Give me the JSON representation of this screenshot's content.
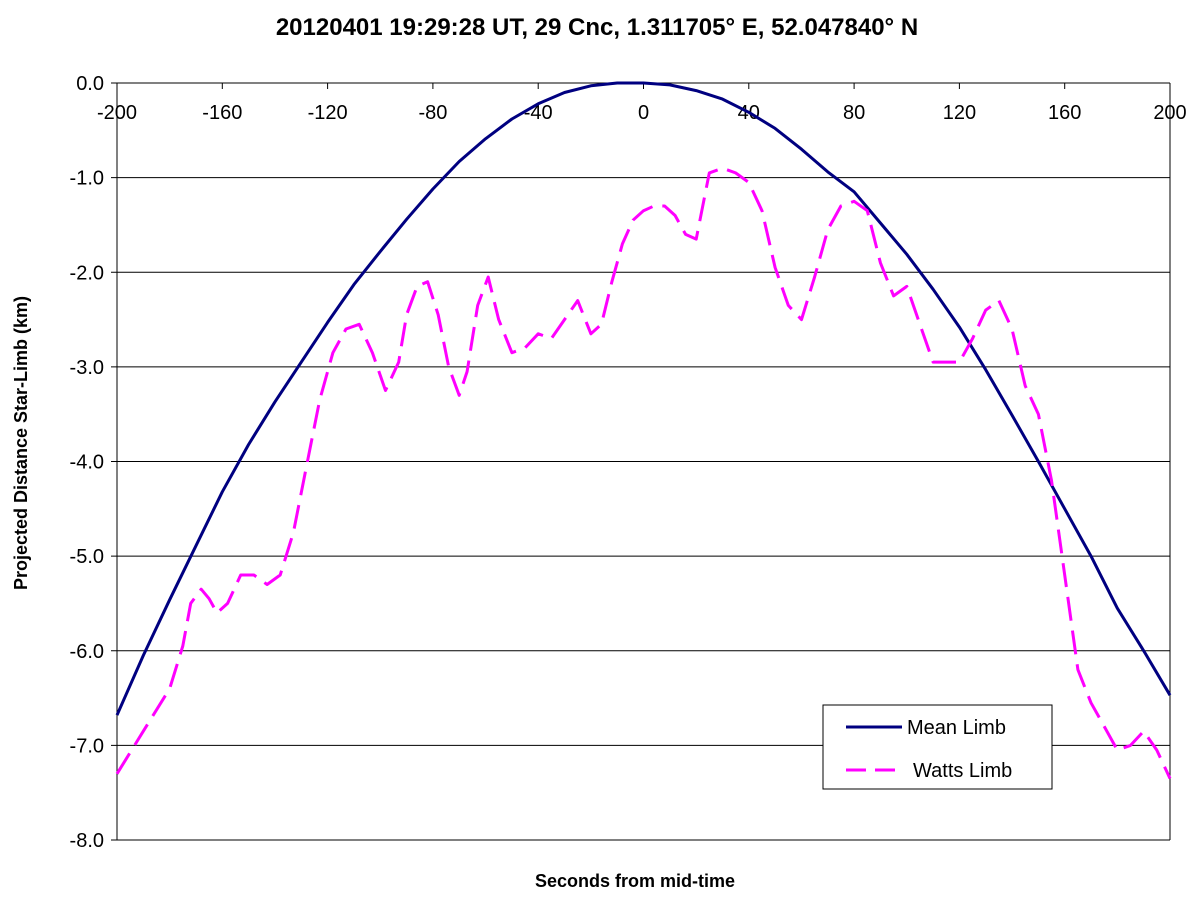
{
  "chart_data": {
    "type": "line",
    "title": "20120401 19:29:28 UT, 29 Cnc, 1.311705° E, 52.047840° N",
    "xlabel": "Seconds from mid-time",
    "ylabel": "Projected Distance Star-Limb (km)",
    "xlim": [
      -200,
      200
    ],
    "ylim": [
      -8,
      0
    ],
    "x_ticks": [
      -200,
      -160,
      -120,
      -80,
      -40,
      0,
      40,
      80,
      120,
      160,
      200
    ],
    "x_tick_labels": [
      "-200",
      "-160",
      "-120",
      "-80",
      "-40",
      "0",
      "40",
      "80",
      "120",
      "160",
      "200"
    ],
    "y_ticks": [
      0,
      -1,
      -2,
      -3,
      -4,
      -5,
      -6,
      -7,
      -8
    ],
    "y_tick_labels": [
      "0.0",
      "-1.0",
      "-2.0",
      "-3.0",
      "-4.0",
      "-5.0",
      "-6.0",
      "-7.0",
      "-8.0"
    ],
    "x_axis_position": "top",
    "grid": "horizontal",
    "legend_position": "bottom-right",
    "series": [
      {
        "name": "Mean Limb",
        "color": "#000080",
        "style": "solid",
        "x": [
          -200,
          -190,
          -180,
          -170,
          -160,
          -150,
          -140,
          -130,
          -120,
          -110,
          -100,
          -90,
          -80,
          -70,
          -60,
          -50,
          -40,
          -30,
          -20,
          -10,
          0,
          10,
          20,
          30,
          40,
          50,
          60,
          70,
          80,
          90,
          100,
          110,
          120,
          130,
          140,
          150,
          160,
          170,
          180,
          190,
          200
        ],
        "values": [
          -6.68,
          -6.05,
          -5.46,
          -4.89,
          -4.32,
          -3.82,
          -3.37,
          -2.95,
          -2.53,
          -2.13,
          -1.78,
          -1.44,
          -1.12,
          -0.83,
          -0.59,
          -0.38,
          -0.22,
          -0.1,
          -0.03,
          0.0,
          0.0,
          -0.02,
          -0.08,
          -0.17,
          -0.31,
          -0.48,
          -0.7,
          -0.94,
          -1.15,
          -1.48,
          -1.81,
          -2.18,
          -2.58,
          -3.03,
          -3.51,
          -4.0,
          -4.5,
          -5.0,
          -5.55,
          -6.0,
          -6.47
        ]
      },
      {
        "name": "Watts Limb",
        "color": "#FF00FF",
        "style": "dashed",
        "x": [
          -200,
          -190,
          -180,
          -175,
          -172,
          -168,
          -165,
          -162,
          -158,
          -153,
          -148,
          -143,
          -138,
          -133,
          -128,
          -123,
          -118,
          -113,
          -108,
          -103,
          -98,
          -93,
          -90,
          -86,
          -82,
          -78,
          -74,
          -70,
          -67,
          -63,
          -59,
          -55,
          -50,
          -45,
          -40,
          -35,
          -30,
          -25,
          -20,
          -16,
          -12,
          -8,
          -4,
          0,
          4,
          8,
          12,
          16,
          20,
          25,
          30,
          35,
          40,
          45,
          50,
          55,
          60,
          65,
          70,
          75,
          80,
          85,
          90,
          95,
          100,
          105,
          110,
          115,
          120,
          125,
          130,
          135,
          140,
          145,
          150,
          155,
          160,
          165,
          170,
          175,
          180,
          185,
          190,
          195,
          200
        ],
        "values": [
          -7.3,
          -6.85,
          -6.4,
          -5.95,
          -5.5,
          -5.35,
          -5.45,
          -5.6,
          -5.5,
          -5.2,
          -5.2,
          -5.3,
          -5.2,
          -4.75,
          -4.05,
          -3.35,
          -2.85,
          -2.6,
          -2.55,
          -2.85,
          -3.25,
          -2.95,
          -2.45,
          -2.15,
          -2.1,
          -2.45,
          -3.0,
          -3.3,
          -3.05,
          -2.35,
          -2.05,
          -2.5,
          -2.85,
          -2.8,
          -2.65,
          -2.7,
          -2.5,
          -2.3,
          -2.65,
          -2.55,
          -2.1,
          -1.7,
          -1.45,
          -1.35,
          -1.3,
          -1.3,
          -1.4,
          -1.6,
          -1.65,
          -0.95,
          -0.9,
          -0.95,
          -1.05,
          -1.35,
          -1.95,
          -2.35,
          -2.5,
          -2.05,
          -1.55,
          -1.3,
          -1.25,
          -1.35,
          -1.9,
          -2.25,
          -2.15,
          -2.55,
          -2.95,
          -2.95,
          -2.95,
          -2.7,
          -2.4,
          -2.3,
          -2.6,
          -3.2,
          -3.5,
          -4.2,
          -5.2,
          -6.2,
          -6.55,
          -6.8,
          -7.05,
          -7.0,
          -6.85,
          -7.05,
          -7.35
        ]
      }
    ]
  }
}
